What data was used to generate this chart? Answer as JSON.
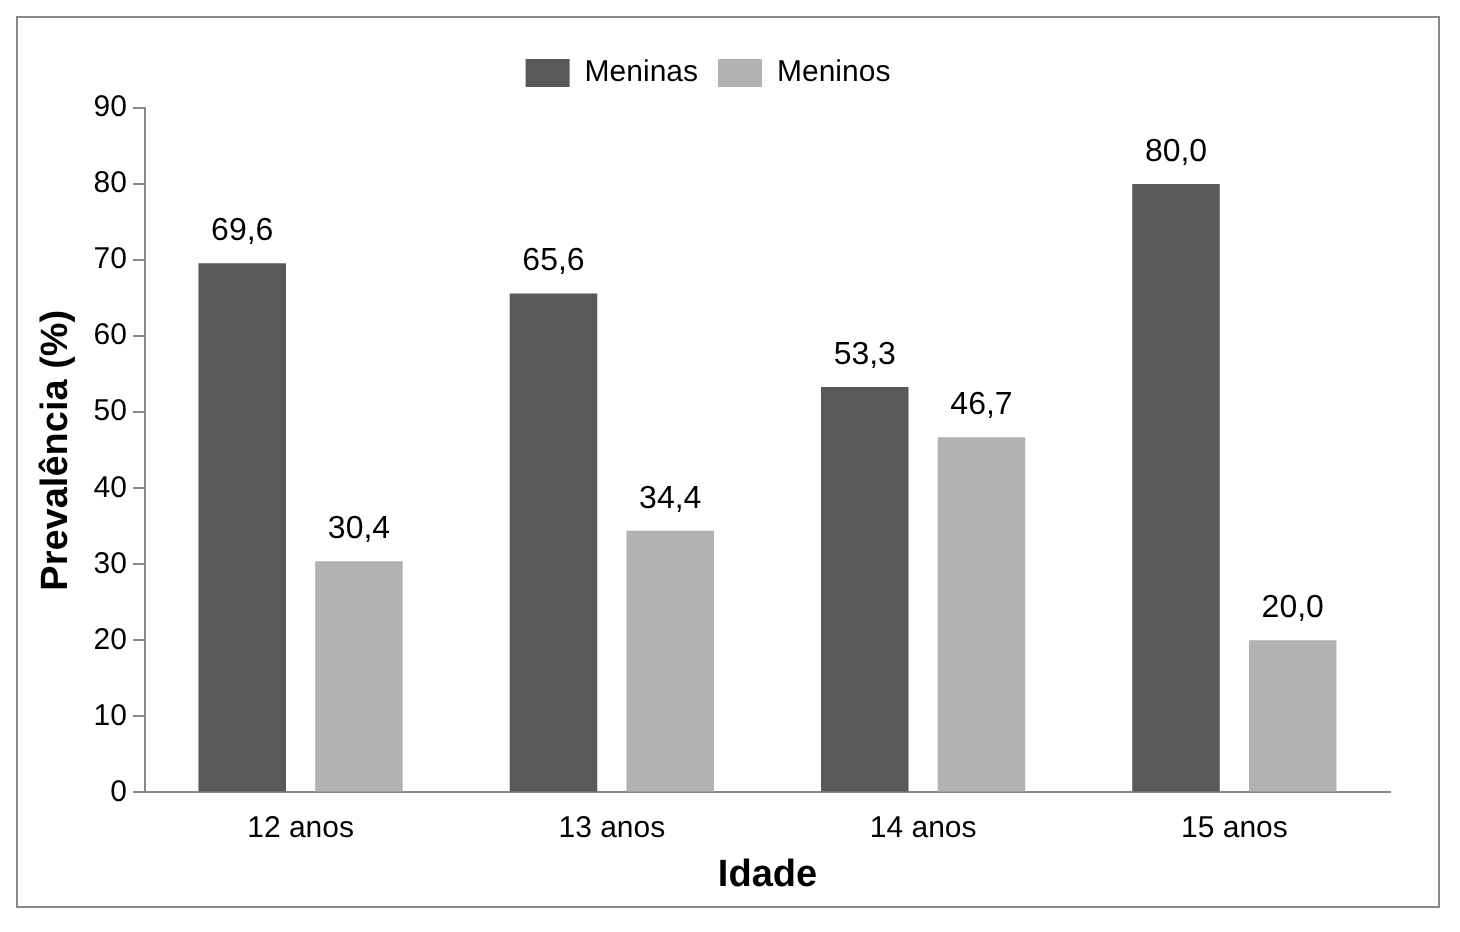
{
  "chart_data": {
    "type": "bar",
    "xlabel": "Idade",
    "ylabel": "Prevalência (%)",
    "categories": [
      "12 anos",
      "13 anos",
      "14 anos",
      "15 anos"
    ],
    "series": [
      {
        "name": "Meninas",
        "color": "#595959",
        "values": [
          69.6,
          65.6,
          53.3,
          80.0
        ],
        "value_labels": [
          "69,6",
          "65,6",
          "53,3",
          "80,0"
        ]
      },
      {
        "name": "Meninos",
        "color": "#b2b2b2",
        "values": [
          30.4,
          34.4,
          46.7,
          20.0
        ],
        "value_labels": [
          "30,4",
          "34,4",
          "46,7",
          "20,0"
        ]
      }
    ],
    "ylim": [
      0,
      90
    ],
    "yticks": [
      0,
      10,
      20,
      30,
      40,
      50,
      60,
      70,
      80,
      90
    ],
    "grid": false,
    "legend": "top"
  }
}
